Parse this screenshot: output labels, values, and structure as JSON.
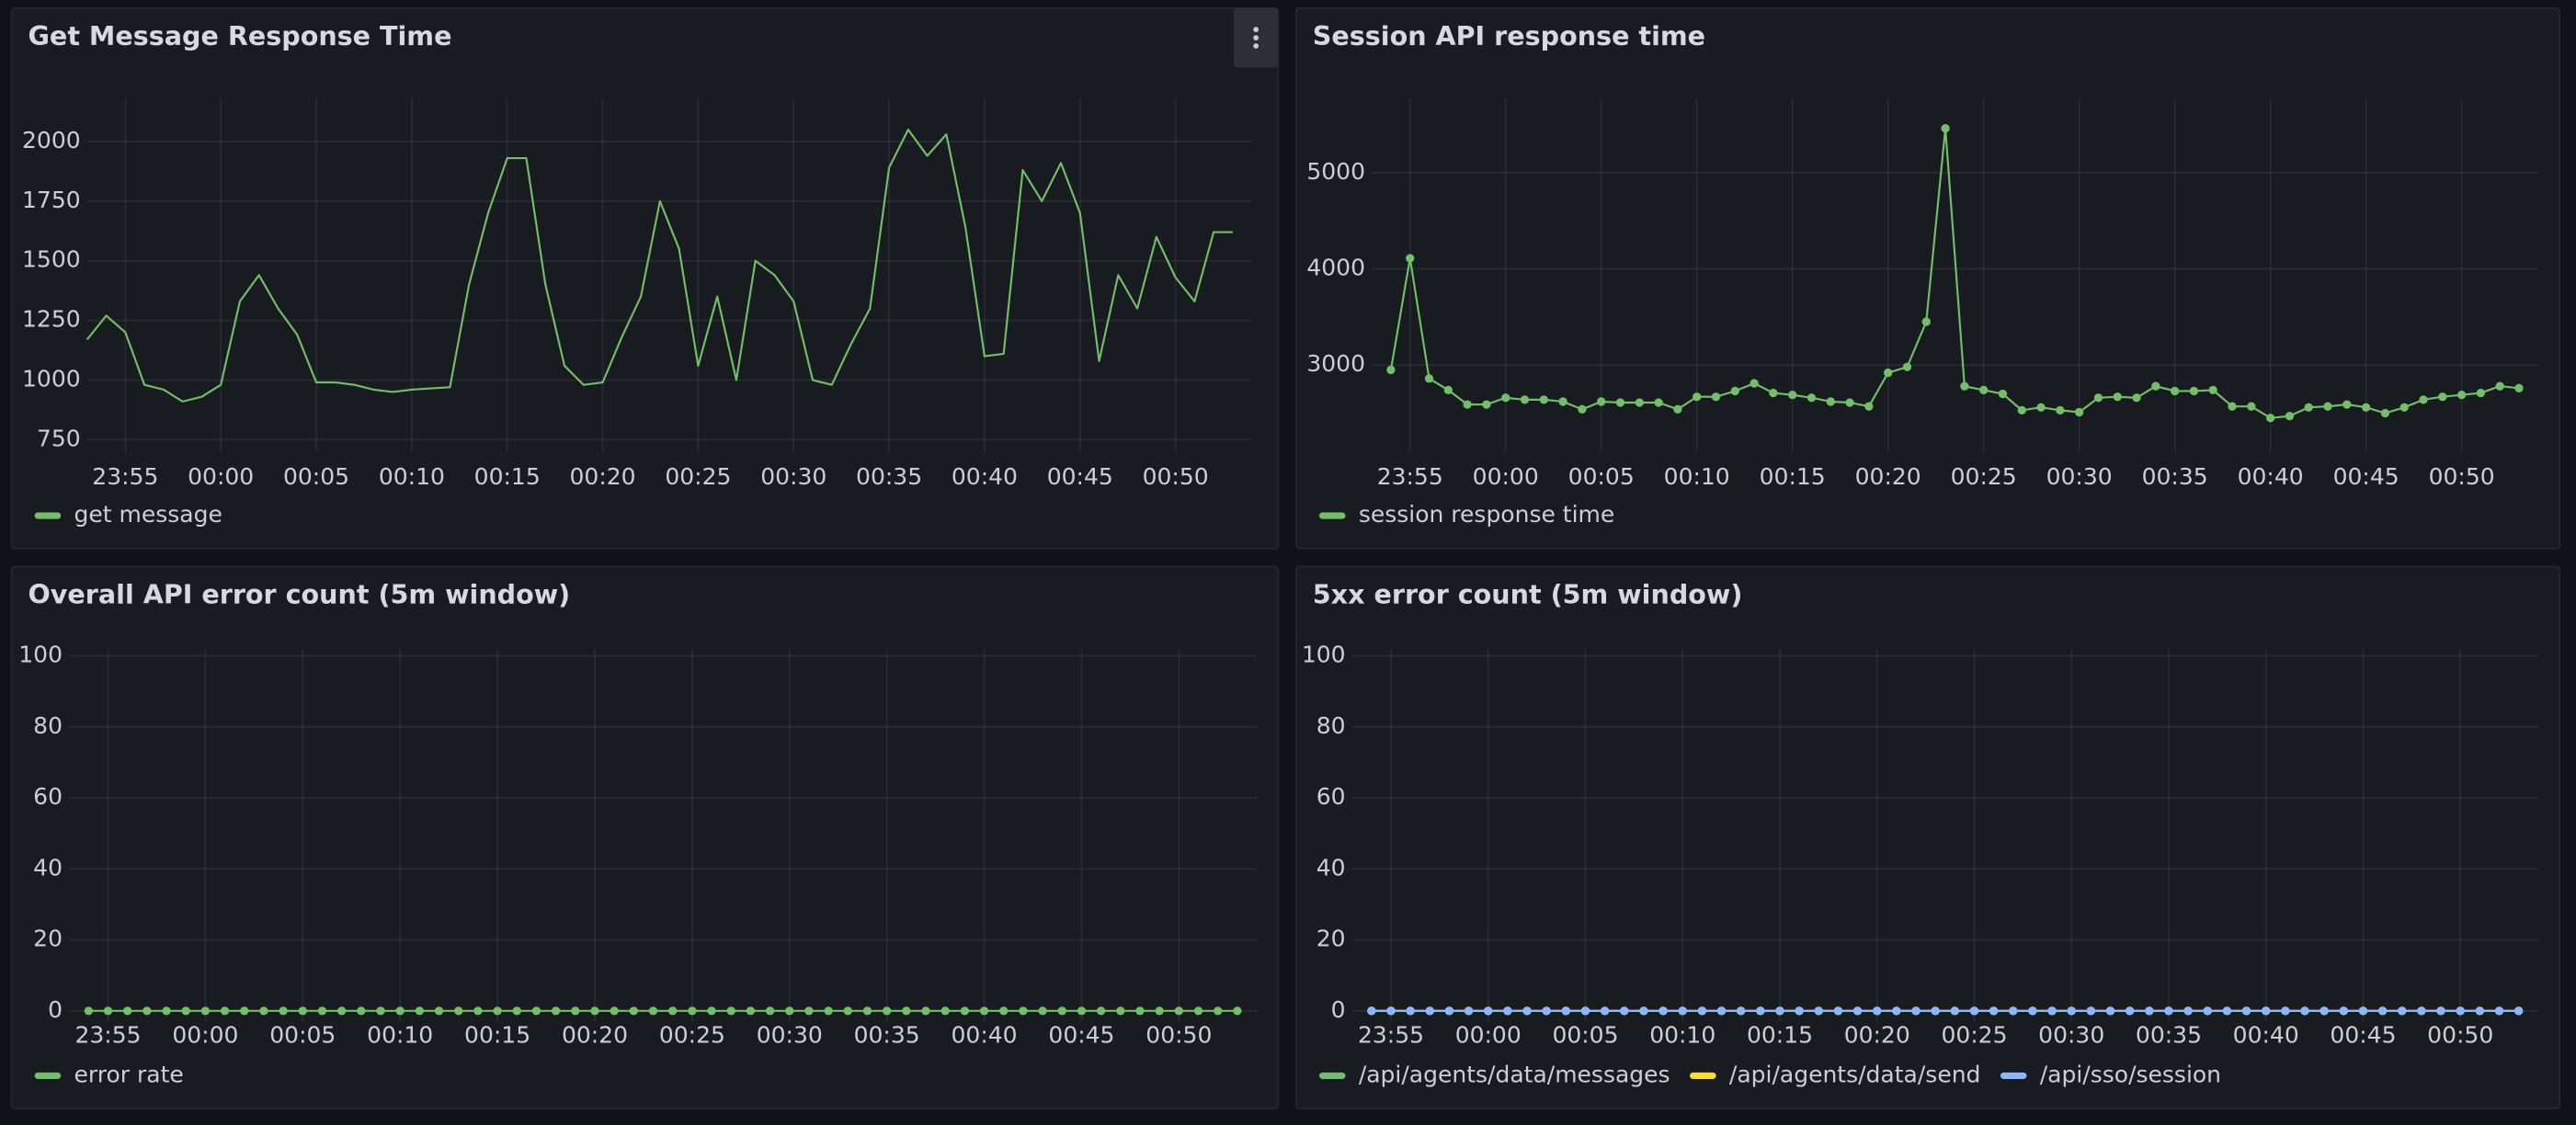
{
  "chart_data": [
    {
      "type": "line",
      "title": "Get Message Response Time",
      "x": [
        "23:53",
        "23:54",
        "23:55",
        "23:56",
        "23:57",
        "23:58",
        "23:59",
        "00:00",
        "00:01",
        "00:02",
        "00:03",
        "00:04",
        "00:05",
        "00:06",
        "00:07",
        "00:08",
        "00:09",
        "00:10",
        "00:11",
        "00:12",
        "00:13",
        "00:14",
        "00:15",
        "00:16",
        "00:17",
        "00:18",
        "00:19",
        "00:20",
        "00:21",
        "00:22",
        "00:23",
        "00:24",
        "00:25",
        "00:26",
        "00:27",
        "00:28",
        "00:29",
        "00:30",
        "00:31",
        "00:32",
        "00:33",
        "00:34",
        "00:35",
        "00:36",
        "00:37",
        "00:38",
        "00:39",
        "00:40",
        "00:41",
        "00:42",
        "00:43",
        "00:44",
        "00:45",
        "00:46",
        "00:47",
        "00:48",
        "00:49",
        "00:50",
        "00:51",
        "00:52",
        "00:53"
      ],
      "series": [
        {
          "name": "get message",
          "color": "#73bf69",
          "show_points": false,
          "values": [
            1170,
            1270,
            1200,
            980,
            960,
            910,
            930,
            980,
            1330,
            1440,
            1300,
            1190,
            990,
            990,
            980,
            960,
            950,
            960,
            965,
            970,
            1400,
            1700,
            1930,
            1930,
            1400,
            1060,
            980,
            990,
            1180,
            1350,
            1750,
            1550,
            1060,
            1350,
            1000,
            1500,
            1440,
            1330,
            1000,
            980,
            1150,
            1300,
            1890,
            2050,
            1940,
            2030,
            1640,
            1100,
            1110,
            1880,
            1750,
            1910,
            1700,
            1080,
            1440,
            1300,
            1600,
            1430,
            1330,
            1620,
            1620
          ]
        }
      ],
      "xlim": [
        "23:53",
        "00:54"
      ],
      "xticks": [
        "23:55",
        "00:00",
        "00:05",
        "00:10",
        "00:15",
        "00:20",
        "00:25",
        "00:30",
        "00:35",
        "00:40",
        "00:45",
        "00:50"
      ],
      "ylim": [
        700,
        2180
      ],
      "yticks": [
        750,
        1000,
        1250,
        1500,
        1750,
        2000
      ],
      "grid": true
    },
    {
      "type": "line",
      "title": "Session API response time",
      "x": [
        "23:54",
        "23:55",
        "23:56",
        "23:57",
        "23:58",
        "23:59",
        "00:00",
        "00:01",
        "00:02",
        "00:03",
        "00:04",
        "00:05",
        "00:06",
        "00:07",
        "00:08",
        "00:09",
        "00:10",
        "00:11",
        "00:12",
        "00:13",
        "00:14",
        "00:15",
        "00:16",
        "00:17",
        "00:18",
        "00:19",
        "00:20",
        "00:21",
        "00:22",
        "00:23",
        "00:24",
        "00:25",
        "00:26",
        "00:27",
        "00:28",
        "00:29",
        "00:30",
        "00:31",
        "00:32",
        "00:33",
        "00:34",
        "00:35",
        "00:36",
        "00:37",
        "00:38",
        "00:39",
        "00:40",
        "00:41",
        "00:42",
        "00:43",
        "00:44",
        "00:45",
        "00:46",
        "00:47",
        "00:48",
        "00:49",
        "00:50",
        "00:51",
        "00:52",
        "00:53"
      ],
      "series": [
        {
          "name": "session response time",
          "color": "#73bf69",
          "show_points": true,
          "values": [
            2950,
            4110,
            2860,
            2740,
            2590,
            2590,
            2660,
            2640,
            2640,
            2620,
            2540,
            2620,
            2610,
            2610,
            2610,
            2540,
            2670,
            2670,
            2730,
            2810,
            2710,
            2690,
            2660,
            2620,
            2610,
            2570,
            2920,
            2980,
            3450,
            5460,
            2780,
            2740,
            2700,
            2530,
            2560,
            2530,
            2510,
            2660,
            2670,
            2660,
            2780,
            2730,
            2730,
            2740,
            2570,
            2570,
            2450,
            2470,
            2560,
            2570,
            2590,
            2560,
            2500,
            2560,
            2640,
            2670,
            2690,
            2710,
            2780,
            2760
          ]
        }
      ],
      "xlim": [
        "23:53",
        "00:54"
      ],
      "xticks": [
        "23:55",
        "00:00",
        "00:05",
        "00:10",
        "00:15",
        "00:20",
        "00:25",
        "00:30",
        "00:35",
        "00:40",
        "00:45",
        "00:50"
      ],
      "ylim": [
        2100,
        5770
      ],
      "yticks": [
        3000,
        4000,
        5000
      ],
      "grid": true
    },
    {
      "type": "line",
      "title": "Overall API error count (5m window)",
      "x": [
        "23:54",
        "23:55",
        "23:56",
        "23:57",
        "23:58",
        "23:59",
        "00:00",
        "00:01",
        "00:02",
        "00:03",
        "00:04",
        "00:05",
        "00:06",
        "00:07",
        "00:08",
        "00:09",
        "00:10",
        "00:11",
        "00:12",
        "00:13",
        "00:14",
        "00:15",
        "00:16",
        "00:17",
        "00:18",
        "00:19",
        "00:20",
        "00:21",
        "00:22",
        "00:23",
        "00:24",
        "00:25",
        "00:26",
        "00:27",
        "00:28",
        "00:29",
        "00:30",
        "00:31",
        "00:32",
        "00:33",
        "00:34",
        "00:35",
        "00:36",
        "00:37",
        "00:38",
        "00:39",
        "00:40",
        "00:41",
        "00:42",
        "00:43",
        "00:44",
        "00:45",
        "00:46",
        "00:47",
        "00:48",
        "00:49",
        "00:50",
        "00:51",
        "00:52",
        "00:53"
      ],
      "series": [
        {
          "name": "error rate",
          "color": "#73bf69",
          "show_points": true,
          "values": [
            0,
            0,
            0,
            0,
            0,
            0,
            0,
            0,
            0,
            0,
            0,
            0,
            0,
            0,
            0,
            0,
            0,
            0,
            0,
            0,
            0,
            0,
            0,
            0,
            0,
            0,
            0,
            0,
            0,
            0,
            0,
            0,
            0,
            0,
            0,
            0,
            0,
            0,
            0,
            0,
            0,
            0,
            0,
            0,
            0,
            0,
            0,
            0,
            0,
            0,
            0,
            0,
            0,
            0,
            0,
            0,
            0,
            0,
            0,
            0
          ]
        }
      ],
      "xlim": [
        "23:53",
        "00:54"
      ],
      "xticks": [
        "23:55",
        "00:00",
        "00:05",
        "00:10",
        "00:15",
        "00:20",
        "00:25",
        "00:30",
        "00:35",
        "00:40",
        "00:45",
        "00:50"
      ],
      "ylim": [
        -3,
        102
      ],
      "yticks": [
        0,
        20,
        40,
        60,
        80,
        100
      ],
      "grid": true
    },
    {
      "type": "line",
      "title": "5xx error count (5m window)",
      "x": [
        "23:54",
        "23:55",
        "23:56",
        "23:57",
        "23:58",
        "23:59",
        "00:00",
        "00:01",
        "00:02",
        "00:03",
        "00:04",
        "00:05",
        "00:06",
        "00:07",
        "00:08",
        "00:09",
        "00:10",
        "00:11",
        "00:12",
        "00:13",
        "00:14",
        "00:15",
        "00:16",
        "00:17",
        "00:18",
        "00:19",
        "00:20",
        "00:21",
        "00:22",
        "00:23",
        "00:24",
        "00:25",
        "00:26",
        "00:27",
        "00:28",
        "00:29",
        "00:30",
        "00:31",
        "00:32",
        "00:33",
        "00:34",
        "00:35",
        "00:36",
        "00:37",
        "00:38",
        "00:39",
        "00:40",
        "00:41",
        "00:42",
        "00:43",
        "00:44",
        "00:45",
        "00:46",
        "00:47",
        "00:48",
        "00:49",
        "00:50",
        "00:51",
        "00:52",
        "00:53"
      ],
      "series": [
        {
          "name": "/api/agents/data/messages",
          "color": "#73bf69",
          "show_points": true,
          "values": [
            0,
            0,
            0,
            0,
            0,
            0,
            0,
            0,
            0,
            0,
            0,
            0,
            0,
            0,
            0,
            0,
            0,
            0,
            0,
            0,
            0,
            0,
            0,
            0,
            0,
            0,
            0,
            0,
            0,
            0,
            0,
            0,
            0,
            0,
            0,
            0,
            0,
            0,
            0,
            0,
            0,
            0,
            0,
            0,
            0,
            0,
            0,
            0,
            0,
            0,
            0,
            0,
            0,
            0,
            0,
            0,
            0,
            0,
            0,
            0
          ]
        },
        {
          "name": "/api/agents/data/send",
          "color": "#fade2a",
          "show_points": true,
          "values": [
            0,
            0,
            0,
            0,
            0,
            0,
            0,
            0,
            0,
            0,
            0,
            0,
            0,
            0,
            0,
            0,
            0,
            0,
            0,
            0,
            0,
            0,
            0,
            0,
            0,
            0,
            0,
            0,
            0,
            0,
            0,
            0,
            0,
            0,
            0,
            0,
            0,
            0,
            0,
            0,
            0,
            0,
            0,
            0,
            0,
            0,
            0,
            0,
            0,
            0,
            0,
            0,
            0,
            0,
            0,
            0,
            0,
            0,
            0,
            0
          ]
        },
        {
          "name": "/api/sso/session",
          "color": "#8ab8ff",
          "show_points": true,
          "values": [
            0,
            0,
            0,
            0,
            0,
            0,
            0,
            0,
            0,
            0,
            0,
            0,
            0,
            0,
            0,
            0,
            0,
            0,
            0,
            0,
            0,
            0,
            0,
            0,
            0,
            0,
            0,
            0,
            0,
            0,
            0,
            0,
            0,
            0,
            0,
            0,
            0,
            0,
            0,
            0,
            0,
            0,
            0,
            0,
            0,
            0,
            0,
            0,
            0,
            0,
            0,
            0,
            0,
            0,
            0,
            0,
            0,
            0,
            0,
            0
          ]
        }
      ],
      "xlim": [
        "23:53",
        "00:54"
      ],
      "xticks": [
        "23:55",
        "00:00",
        "00:05",
        "00:10",
        "00:15",
        "00:20",
        "00:25",
        "00:30",
        "00:35",
        "00:40",
        "00:45",
        "00:50"
      ],
      "ylim": [
        -3,
        102
      ],
      "yticks": [
        0,
        20,
        40,
        60,
        80,
        100
      ],
      "grid": true
    }
  ]
}
